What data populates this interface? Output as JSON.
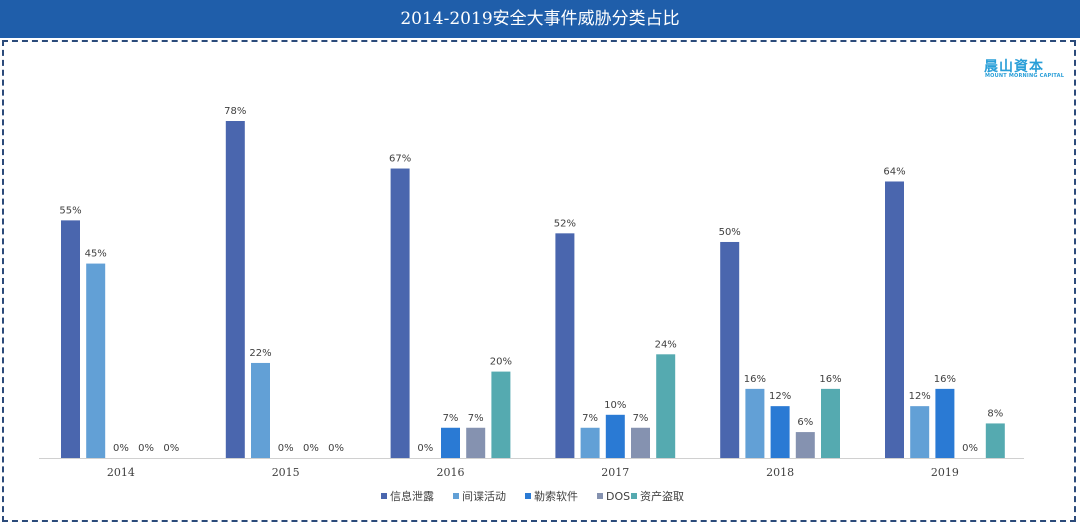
{
  "page_title": "2014-2019安全大事件威胁分类占比",
  "logo": {
    "name": "晨山資本",
    "subtitle": "MOUNT MORNING CAPITAL"
  },
  "colors": {
    "title_bar": "#1f5eaa",
    "series": [
      "#4a66ae",
      "#62a0d6",
      "#2a7ad4",
      "#8592b0",
      "#55aab0"
    ]
  },
  "chart_data": {
    "type": "bar",
    "title": "2014-2019安全大事件威胁分类占比",
    "categories": [
      "2014",
      "2015",
      "2016",
      "2017",
      "2018",
      "2019"
    ],
    "series": [
      {
        "name": "信息泄露",
        "values": [
          55,
          78,
          67,
          52,
          50,
          64
        ]
      },
      {
        "name": "间谍活动",
        "values": [
          45,
          22,
          0,
          7,
          16,
          12
        ]
      },
      {
        "name": "勒索软件",
        "values": [
          0,
          0,
          7,
          10,
          12,
          16
        ]
      },
      {
        "name": "DOS",
        "values": [
          0,
          0,
          7,
          7,
          6,
          0
        ]
      },
      {
        "name": "资产盗取",
        "values": [
          0,
          0,
          20,
          24,
          16,
          8
        ]
      }
    ],
    "value_suffix": "%",
    "ylim": [
      0,
      78
    ],
    "legend_position": "bottom",
    "grid": false
  }
}
